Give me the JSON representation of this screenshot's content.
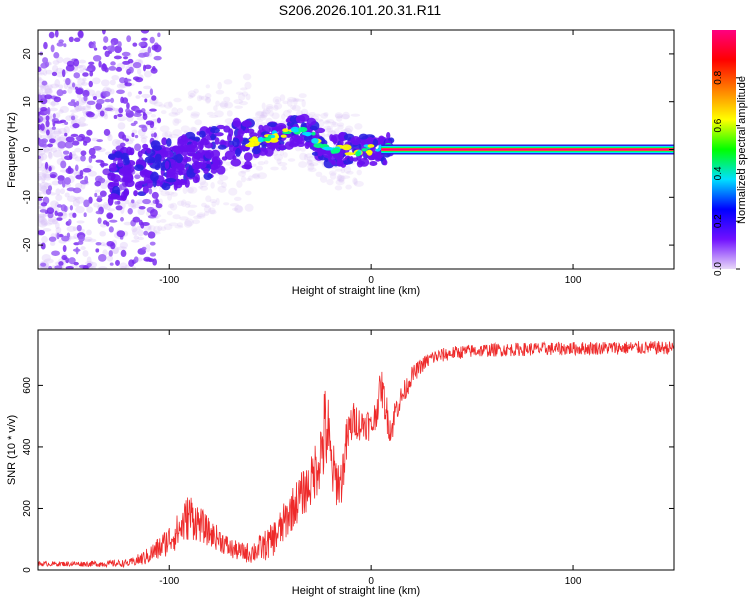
{
  "title": "S206.2026.101.20.31.R11",
  "chart_data": [
    {
      "type": "heatmap",
      "title": "S206.2026.101.20.31.R11",
      "xlabel": "Height of straight line (km)",
      "ylabel": "Frequency (Hz)",
      "xlim": [
        -165,
        150
      ],
      "ylim": [
        -25,
        25
      ],
      "xticks": [
        -100,
        0,
        100
      ],
      "yticks": [
        -20,
        -10,
        0,
        10,
        20
      ],
      "xtick_labels": [
        "-100",
        "0",
        "100"
      ],
      "ytick_labels": [
        "-20",
        "-10",
        "0",
        "10",
        "20"
      ],
      "grid": false,
      "description_points": {
        "line_frequency_hz": 0,
        "line_start_km": 5,
        "line_end_km": 150,
        "ridge_x_km": [
          -130,
          -110,
          -90,
          -75,
          -60,
          -50,
          -40,
          -32,
          -25,
          -20,
          -15,
          -10,
          -5,
          0,
          5,
          10
        ],
        "ridge_y_hz": [
          -6,
          -4,
          -2,
          0,
          1.5,
          2.5,
          3.5,
          4,
          1,
          -0.5,
          0,
          -0.5,
          0,
          0,
          0,
          0
        ]
      },
      "colorbar": {
        "label": "Normalized spectral amplitude",
        "range": [
          0,
          1
        ],
        "ticks": [
          0.0,
          0.2,
          0.4,
          0.6,
          0.8
        ],
        "tick_labels": [
          "0.0",
          "0.2",
          "0.4",
          "0.6",
          "0.8"
        ],
        "colors": [
          "#e8d8f8",
          "#7010ff",
          "#0000ff",
          "#00e0ff",
          "#00ff00",
          "#ffff00",
          "#ff8000",
          "#ff0000",
          "#ff0080"
        ]
      }
    },
    {
      "type": "line",
      "title": "",
      "xlabel": "Height of straight line (km)",
      "ylabel": "SNR (10 * v/v)",
      "xlim": [
        -165,
        150
      ],
      "ylim": [
        0,
        780
      ],
      "xticks": [
        -100,
        0,
        100
      ],
      "yticks": [
        0,
        200,
        400,
        600
      ],
      "xtick_labels": [
        "-100",
        "0",
        "100"
      ],
      "ytick_labels": [
        "0",
        "200",
        "400",
        "600"
      ],
      "grid": false,
      "series": [
        {
          "name": "SNR",
          "color": "#ee2a2a",
          "x": [
            -165,
            -150,
            -135,
            -120,
            -112,
            -105,
            -100,
            -95,
            -90,
            -85,
            -80,
            -75,
            -70,
            -65,
            -60,
            -55,
            -50,
            -45,
            -40,
            -35,
            -30,
            -25,
            -22,
            -20,
            -18,
            -15,
            -12,
            -10,
            -8,
            -5,
            -2,
            0,
            2,
            5,
            8,
            10,
            12,
            15,
            18,
            20,
            25,
            30,
            40,
            50,
            60,
            80,
            100,
            120,
            140,
            150
          ],
          "values": [
            20,
            20,
            20,
            22,
            40,
            70,
            100,
            130,
            180,
            150,
            120,
            100,
            70,
            60,
            55,
            70,
            90,
            130,
            190,
            240,
            280,
            380,
            470,
            350,
            300,
            280,
            420,
            470,
            490,
            470,
            480,
            460,
            500,
            600,
            500,
            450,
            520,
            560,
            600,
            630,
            665,
            690,
            705,
            712,
            715,
            718,
            720,
            722,
            722,
            722
          ],
          "noise": [
            8,
            8,
            10,
            12,
            25,
            40,
            50,
            60,
            80,
            60,
            45,
            40,
            35,
            30,
            35,
            45,
            55,
            65,
            70,
            75,
            80,
            120,
            180,
            110,
            90,
            80,
            80,
            70,
            60,
            55,
            55,
            50,
            55,
            60,
            60,
            50,
            45,
            40,
            35,
            30,
            25,
            25,
            22,
            22,
            22,
            22,
            22,
            22,
            22,
            22
          ]
        }
      ]
    }
  ]
}
